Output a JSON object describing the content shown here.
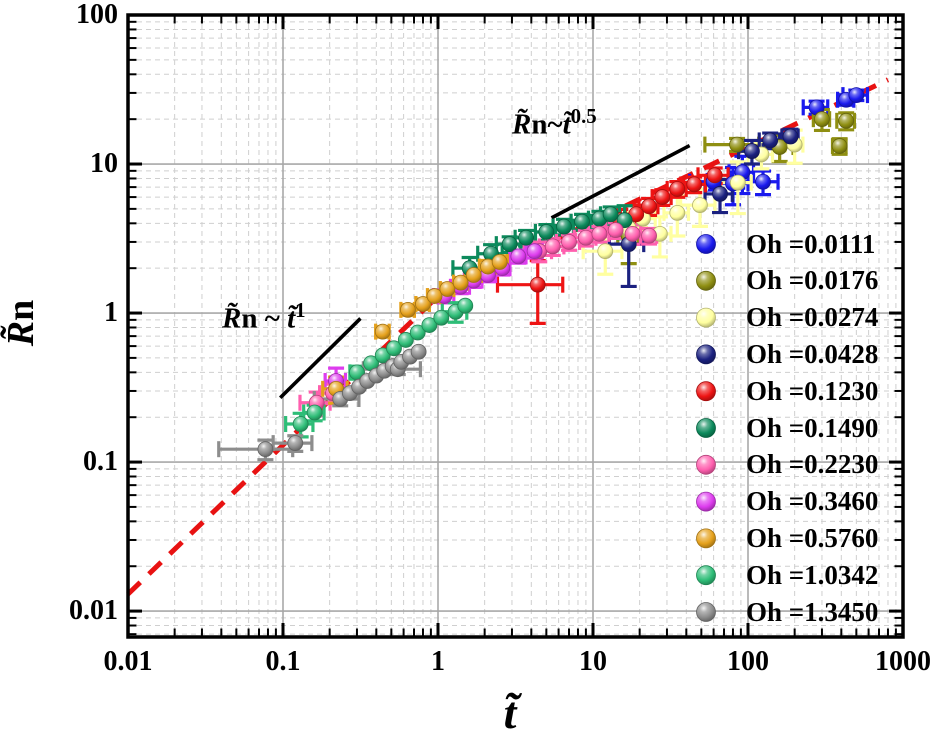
{
  "figure": {
    "x_axis": {
      "label": "t̃",
      "min": 0.01,
      "max": 1000,
      "ticks": [
        "0.01",
        "0.1",
        "1",
        "10",
        "100",
        "1000"
      ],
      "tick_values": [
        0.01,
        0.1,
        1,
        10,
        100,
        1000
      ]
    },
    "y_axis": {
      "label_main": "R̃",
      "label_sub": "n",
      "min": 0.0067,
      "max": 100,
      "ticks": [
        "100",
        "10",
        "1",
        "0.1",
        "0.01"
      ],
      "tick_values": [
        100,
        10,
        1,
        0.1,
        0.01
      ]
    },
    "annotations": [
      {
        "r": "R̃",
        "mid": "n ~ ",
        "t": "t̃",
        "exp": "1"
      },
      {
        "r": "R̃",
        "mid": "n~",
        "t": "t̃",
        "exp": "0.5"
      }
    ]
  },
  "chart_data": {
    "type": "scatter",
    "log_x": true,
    "log_y": true,
    "title": "",
    "xlabel": "t̃",
    "ylabel": "R̃n",
    "xlim": [
      0.01,
      1000
    ],
    "ylim": [
      0.0067,
      100
    ],
    "grid": true,
    "legend_position": "right-middle",
    "fit_line": {
      "color": "#e81212",
      "style": "dashed",
      "t": [
        0.01,
        1,
        800
      ],
      "R": [
        0.013,
        1.3,
        36.8
      ]
    },
    "guide_lines": [
      {
        "slope_label": "1",
        "t": [
          0.096,
          0.316
        ],
        "R": [
          0.27,
          0.92
        ]
      },
      {
        "slope_label": "0.5",
        "t": [
          5.4,
          42
        ],
        "R": [
          4.35,
          13.3
        ]
      }
    ],
    "series": [
      {
        "name": "Oh =0.0111",
        "color": "#1a1aee",
        "points": [
          [
            60,
            7.6,
            0.3,
            0.12
          ],
          [
            80,
            7.4,
            0.25,
            0.28
          ],
          [
            92,
            8.8,
            0.18,
            0.28
          ],
          [
            125,
            7.6,
            0.25,
            0.18
          ],
          [
            277,
            24,
            0.18,
            0.1
          ],
          [
            430,
            27,
            0.12,
            0.08
          ],
          [
            500,
            29,
            0.18,
            0.08
          ]
        ]
      },
      {
        "name": "Oh =0.0176",
        "color": "#8f8f12",
        "points": [
          [
            17,
            3.3,
            0.15,
            0.35
          ],
          [
            85,
            13.5,
            0.38,
            0.1
          ],
          [
            160,
            13,
            0.22,
            0.2
          ],
          [
            300,
            20,
            0.12,
            0.16
          ],
          [
            390,
            13.2,
            0.1,
            0.12
          ],
          [
            430,
            19.5,
            0.13,
            0.13
          ]
        ]
      },
      {
        "name": "Oh =0.0274",
        "color": "#ffffa0",
        "points": [
          [
            12,
            2.6,
            0.28,
            0.3
          ],
          [
            17,
            3.7,
            0.22,
            0.25
          ],
          [
            21,
            4.3,
            0.2,
            0.2
          ],
          [
            27,
            3.4,
            0.18,
            0.3
          ],
          [
            35,
            4.7,
            0.18,
            0.3
          ],
          [
            49,
            5.3,
            0.25,
            0.28
          ],
          [
            86,
            7.5,
            0.22,
            0.38
          ],
          [
            122,
            11.6,
            0.18,
            0.2
          ],
          [
            200,
            13.5,
            0.13,
            0.25
          ]
        ]
      },
      {
        "name": "Oh =0.0428",
        "color": "#1b2180",
        "points": [
          [
            17,
            2.9,
            0.25,
            0.48
          ],
          [
            66,
            6.3,
            0.2,
            0.25
          ],
          [
            106,
            12.2,
            0.18,
            0.18
          ],
          [
            139,
            14.4,
            0.15,
            0.12
          ],
          [
            188,
            15.3,
            0.12,
            0.12
          ]
        ]
      },
      {
        "name": "Oh =0.1230",
        "color": "#ee1414",
        "points": [
          [
            4.4,
            1.55,
            0.45,
            0.45
          ],
          [
            15,
            4.2,
            0.2,
            0.18
          ],
          [
            19,
            4.6,
            0.15,
            0.15
          ],
          [
            23,
            5.2,
            0.14,
            0.13
          ],
          [
            28,
            6.0,
            0.14,
            0.12
          ],
          [
            35,
            6.8,
            0.14,
            0.12
          ],
          [
            45,
            7.3,
            0.18,
            0.12
          ],
          [
            61,
            8.4,
            0.22,
            0.12
          ]
        ]
      },
      {
        "name": "Oh =0.1490",
        "color": "#0c8a5c",
        "points": [
          [
            1.6,
            2.0,
            0.22,
            0.18
          ],
          [
            2.2,
            2.5,
            0.18,
            0.15
          ],
          [
            2.9,
            2.9,
            0.18,
            0.12
          ],
          [
            3.7,
            3.2,
            0.15,
            0.12
          ],
          [
            5,
            3.5,
            0.15,
            0.12
          ],
          [
            6.5,
            3.8,
            0.15,
            0.12
          ],
          [
            8.5,
            4.1,
            0.15,
            0.12
          ],
          [
            11,
            4.3,
            0.15,
            0.12
          ],
          [
            13,
            4.6,
            0.14,
            0.12
          ],
          [
            16,
            4.2,
            0.12,
            0.25
          ]
        ]
      },
      {
        "name": "Oh =0.2230",
        "color": "#ff5fae",
        "points": [
          [
            0.165,
            0.25,
            0.22,
            0.18
          ],
          [
            0.21,
            0.29,
            0.18,
            0.15
          ],
          [
            4.5,
            2.6,
            0.2,
            0.15
          ],
          [
            5.5,
            2.8,
            0.18,
            0.13
          ],
          [
            7,
            3.0,
            0.17,
            0.12
          ],
          [
            9,
            3.2,
            0.16,
            0.12
          ],
          [
            11,
            3.4,
            0.15,
            0.12
          ],
          [
            14,
            3.6,
            0.14,
            0.12
          ],
          [
            18,
            3.4,
            0.13,
            0.15
          ],
          [
            23,
            3.3,
            0.12,
            0.12
          ]
        ]
      },
      {
        "name": "Oh =0.3460",
        "color": "#dd3cee",
        "points": [
          [
            0.22,
            0.35,
            0.15,
            0.22
          ],
          [
            1.1,
            1.3,
            0.15,
            0.1
          ],
          [
            1.4,
            1.5,
            0.14,
            0.1
          ],
          [
            1.7,
            1.65,
            0.13,
            0.1
          ],
          [
            2.1,
            1.8,
            0.12,
            0.1
          ],
          [
            2.6,
            2.0,
            0.12,
            0.1
          ],
          [
            3.3,
            2.4,
            0.12,
            0.1
          ],
          [
            4.2,
            2.6,
            0.12,
            0.1
          ]
        ]
      },
      {
        "name": "Oh =0.5760",
        "color": "#e5a11c",
        "points": [
          [
            0.22,
            0.31,
            0.18,
            0.2
          ],
          [
            0.44,
            0.75,
            0.1,
            0.08
          ],
          [
            0.64,
            1.05,
            0.1,
            0.08
          ],
          [
            0.8,
            1.15,
            0.1,
            0.08
          ],
          [
            0.95,
            1.3,
            0.1,
            0.08
          ],
          [
            1.15,
            1.45,
            0.1,
            0.08
          ],
          [
            1.4,
            1.6,
            0.1,
            0.08
          ],
          [
            1.7,
            1.8,
            0.12,
            0.08
          ],
          [
            2.1,
            2.05,
            0.12,
            0.1
          ],
          [
            2.5,
            2.2,
            0.12,
            0.1
          ]
        ]
      },
      {
        "name": "Oh =1.0342",
        "color": "#2ebd77",
        "points": [
          [
            0.13,
            0.18,
            0.2,
            0.18
          ],
          [
            0.16,
            0.215,
            0.15,
            0.12
          ],
          [
            0.3,
            0.4,
            0.1,
            0.1
          ],
          [
            0.37,
            0.46,
            0.05,
            0.05
          ],
          [
            0.44,
            0.52,
            0.05,
            0.05
          ],
          [
            0.52,
            0.58,
            0.05,
            0.05
          ],
          [
            0.62,
            0.66,
            0.05,
            0.05
          ],
          [
            0.74,
            0.74,
            0.05,
            0.05
          ],
          [
            0.88,
            0.83,
            0.05,
            0.05
          ],
          [
            1.05,
            0.93,
            0.05,
            0.05
          ],
          [
            1.3,
            1.02,
            0.18,
            0.15
          ],
          [
            1.5,
            1.12,
            0.05,
            0.05
          ]
        ]
      },
      {
        "name": "Oh =1.3450",
        "color": "#8d8d8d",
        "points": [
          [
            0.077,
            0.122,
            0.5,
            0.15
          ],
          [
            0.12,
            0.134,
            0.28,
            0.12
          ],
          [
            0.234,
            0.265,
            0.32,
            0.1
          ],
          [
            0.27,
            0.29,
            0.05,
            0.05
          ],
          [
            0.31,
            0.32,
            0.05,
            0.05
          ],
          [
            0.35,
            0.35,
            0.05,
            0.05
          ],
          [
            0.4,
            0.38,
            0.05,
            0.05
          ],
          [
            0.45,
            0.41,
            0.05,
            0.05
          ],
          [
            0.51,
            0.44,
            0.05,
            0.05
          ],
          [
            0.55,
            0.42,
            0.4,
            0.08
          ],
          [
            0.58,
            0.47,
            0.05,
            0.05
          ],
          [
            0.66,
            0.51,
            0.05,
            0.05
          ],
          [
            0.75,
            0.55,
            0.05,
            0.05
          ]
        ]
      }
    ]
  }
}
